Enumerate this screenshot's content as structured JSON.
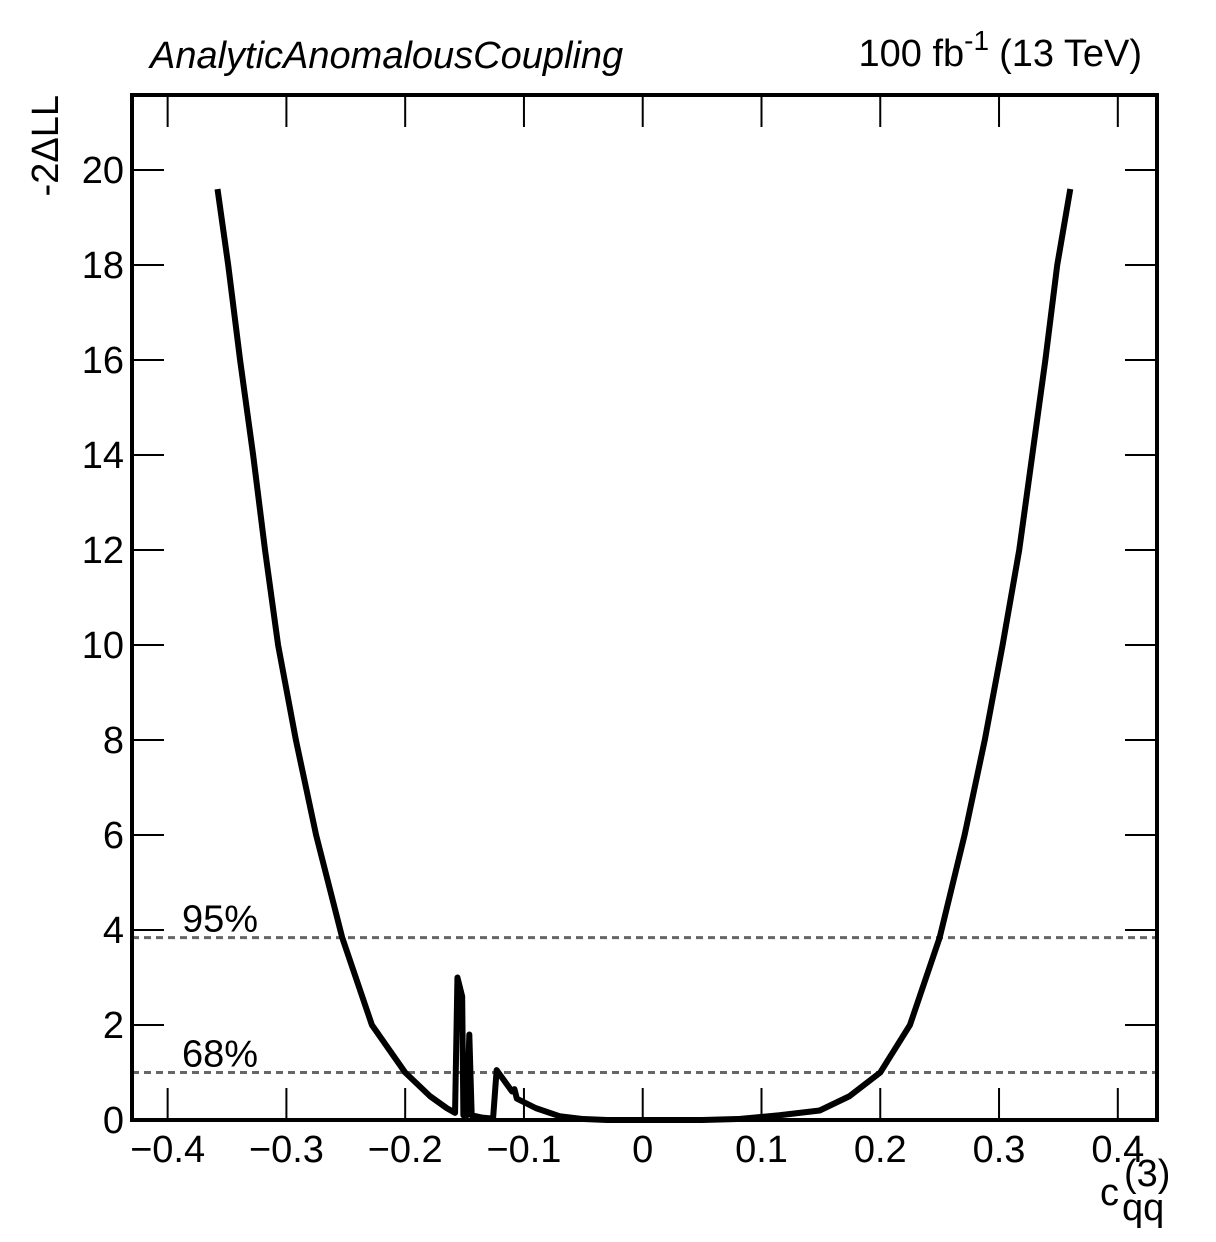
{
  "chart_data": {
    "type": "line",
    "title": "AnalyticAnomalousCoupling",
    "lumi": {
      "text": "100 fb",
      "sup": "-1",
      "suffix": "(13 TeV)"
    },
    "y_label": "-2ΔLL",
    "x_label": {
      "text": "c",
      "sub": "qq",
      "sup": "(3)"
    },
    "xlim": [
      -0.43,
      0.433
    ],
    "ylim": [
      0,
      21.58
    ],
    "xticks": [
      {
        "value": -0.4,
        "label": "−0.4"
      },
      {
        "value": -0.3,
        "label": "−0.3"
      },
      {
        "value": -0.2,
        "label": "−0.2"
      },
      {
        "value": -0.1,
        "label": "−0.1"
      },
      0,
      0.1,
      0.2,
      0.3,
      0.4
    ],
    "yticks": [
      0,
      2,
      4,
      6,
      8,
      10,
      12,
      14,
      16,
      18,
      20
    ],
    "hlines": [
      {
        "value": 3.84,
        "label": "95%"
      },
      {
        "value": 1,
        "label": "68%"
      }
    ],
    "hline_color": "#666666",
    "series": [
      {
        "color": "#000000",
        "x": [
          -0.358,
          -0.349,
          -0.339,
          -0.328,
          -0.318,
          -0.307,
          -0.292,
          -0.275,
          -0.253,
          -0.228,
          -0.2,
          -0.179,
          -0.165,
          -0.158,
          -0.156,
          -0.152,
          -0.151,
          -0.148,
          -0.146,
          -0.144,
          -0.135,
          -0.126,
          -0.123,
          -0.11,
          -0.108,
          -0.106,
          -0.09,
          -0.07,
          -0.05,
          -0.03,
          0,
          0.05,
          0.08,
          0.115,
          0.149,
          0.174,
          0.2,
          0.225,
          0.25,
          0.271,
          0.288,
          0.303,
          0.317,
          0.328,
          0.339,
          0.349,
          0.36
        ],
        "values": [
          19.6,
          18,
          16,
          14,
          12,
          10,
          8,
          6,
          3.84,
          2,
          1,
          0.5,
          0.25,
          0.15,
          3.0,
          2.6,
          0.1,
          0.1,
          1.8,
          0.1,
          0.05,
          0.03,
          1.05,
          0.6,
          0.65,
          0.45,
          0.25,
          0.08,
          0.02,
          0,
          0,
          0,
          0.02,
          0.1,
          0.2,
          0.5,
          1.0,
          2,
          3.84,
          6,
          8,
          10,
          12,
          14,
          16,
          18,
          19.6
        ]
      }
    ]
  }
}
